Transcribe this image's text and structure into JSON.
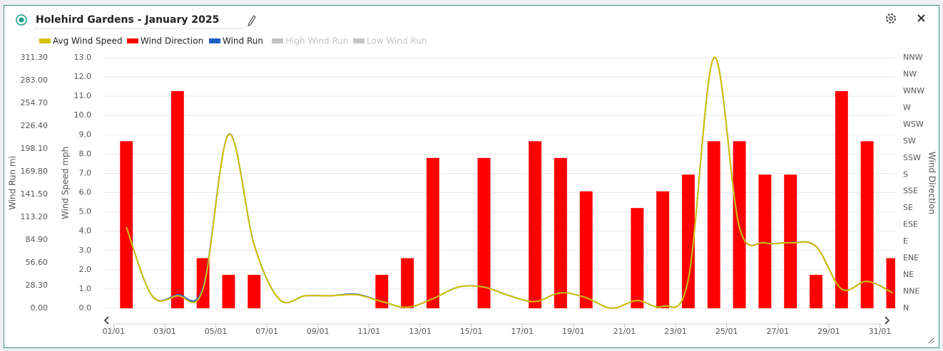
{
  "header": {
    "title": "Holehird Gardens - January 2025"
  },
  "chart_data": {
    "type": "combo",
    "x": [
      1.5,
      2.5,
      3.5,
      4.5,
      5.5,
      6.5,
      7.5,
      8.5,
      9.5,
      10.5,
      11.5,
      12.5,
      13.5,
      14.5,
      15.5,
      16.5,
      17.5,
      18.5,
      19.5,
      20.5,
      21.5,
      22.5,
      23.5,
      24.5,
      25.5,
      26.5,
      27.5,
      28.5,
      29.5,
      30.5,
      31.5
    ],
    "xlim": [
      0.6,
      31.6
    ],
    "xticks": [
      {
        "value": 1,
        "label": "01/01"
      },
      {
        "value": 3,
        "label": "03/01"
      },
      {
        "value": 5,
        "label": "05/01"
      },
      {
        "value": 7,
        "label": "07/01"
      },
      {
        "value": 9,
        "label": "09/01"
      },
      {
        "value": 11,
        "label": "11/01"
      },
      {
        "value": 13,
        "label": "13/01"
      },
      {
        "value": 15,
        "label": "15/01"
      },
      {
        "value": 17,
        "label": "17/01"
      },
      {
        "value": 19,
        "label": "19/01"
      },
      {
        "value": 21,
        "label": "21/01"
      },
      {
        "value": 23,
        "label": "23/01"
      },
      {
        "value": 25,
        "label": "25/01"
      },
      {
        "value": 27,
        "label": "27/01"
      },
      {
        "value": 29,
        "label": "29/01"
      },
      {
        "value": 31,
        "label": "31/01"
      }
    ],
    "series": [
      {
        "name": "Avg Wind Speed",
        "type": "line",
        "color": "#d4c000",
        "axis": "y",
        "values": [
          4.2,
          0.65,
          0.65,
          1.0,
          9.0,
          3.3,
          0.45,
          0.65,
          0.65,
          0.7,
          0.35,
          0.05,
          0.5,
          1.1,
          1.1,
          0.65,
          0.35,
          0.8,
          0.55,
          0.0,
          0.4,
          0.1,
          1.5,
          13.0,
          4.2,
          3.4,
          3.4,
          3.2,
          1.0,
          1.4,
          0.8
        ]
      },
      {
        "name": "Wind Direction",
        "type": "bar",
        "color": "#ff0000",
        "axis": "y3",
        "values": [
          225,
          null,
          292.5,
          67.5,
          45,
          45,
          null,
          null,
          null,
          null,
          45,
          67.5,
          202.5,
          null,
          202.5,
          null,
          225,
          202.5,
          157.5,
          null,
          135,
          157.5,
          180,
          225,
          225,
          180,
          180,
          45,
          292.5,
          225,
          67.5
        ]
      },
      {
        "name": "Wind Run",
        "type": "line",
        "color": "#1f5fbf",
        "axis": "y2",
        "values": [
          100.8,
          15.6,
          16.8,
          26,
          216,
          79.2,
          10.8,
          15.6,
          15.6,
          17.5,
          8.4,
          1.2,
          12,
          26.4,
          26.4,
          15.6,
          8.4,
          19.2,
          13.2,
          0,
          9.6,
          2.4,
          36,
          311.3,
          100.8,
          81.6,
          81.6,
          76.8,
          24,
          33.6,
          19.2
        ]
      },
      {
        "name": "High Wind Run",
        "type": "line",
        "color": "#c4c4c4",
        "axis": "y2",
        "visible": false
      },
      {
        "name": "Low Wind Run",
        "type": "line",
        "color": "#c4c4c4",
        "axis": "y2",
        "visible": false
      }
    ],
    "ylabel": "Wind Speed mph",
    "ylim": [
      0,
      13
    ],
    "yticks": [
      {
        "value": 0,
        "label": "0.0"
      },
      {
        "value": 1,
        "label": "1.0"
      },
      {
        "value": 2,
        "label": "2.0"
      },
      {
        "value": 3,
        "label": "3.0"
      },
      {
        "value": 4,
        "label": "4.0"
      },
      {
        "value": 5,
        "label": "5.0"
      },
      {
        "value": 6,
        "label": "6.0"
      },
      {
        "value": 7,
        "label": "7.0"
      },
      {
        "value": 8,
        "label": "8.0"
      },
      {
        "value": 9,
        "label": "9.0"
      },
      {
        "value": 10,
        "label": "10.0"
      },
      {
        "value": 11,
        "label": "11.0"
      },
      {
        "value": 12,
        "label": "12.0"
      },
      {
        "value": 13,
        "label": "13.0"
      }
    ],
    "y2label": "Wind Run mi",
    "y2lim": [
      0,
      311.3
    ],
    "y2ticks": [
      {
        "value": 0,
        "label": "0.00"
      },
      {
        "value": 28.3,
        "label": "28.30"
      },
      {
        "value": 56.6,
        "label": "56.60"
      },
      {
        "value": 84.9,
        "label": "84.90"
      },
      {
        "value": 113.2,
        "label": "113.20"
      },
      {
        "value": 141.5,
        "label": "141.50"
      },
      {
        "value": 169.8,
        "label": "169.80"
      },
      {
        "value": 198.1,
        "label": "198.10"
      },
      {
        "value": 226.4,
        "label": "226.40"
      },
      {
        "value": 254.7,
        "label": "254.70"
      },
      {
        "value": 283,
        "label": "283.00"
      },
      {
        "value": 311.3,
        "label": "311.30"
      }
    ],
    "y3label": "Wind Direction",
    "y3lim": [
      0,
      337.5
    ],
    "y3ticks": [
      {
        "value": 0,
        "label": "N"
      },
      {
        "value": 22.5,
        "label": "NNE"
      },
      {
        "value": 45,
        "label": "NE"
      },
      {
        "value": 67.5,
        "label": "ENE"
      },
      {
        "value": 90,
        "label": "E"
      },
      {
        "value": 112.5,
        "label": "ESE"
      },
      {
        "value": 135,
        "label": "SE"
      },
      {
        "value": 157.5,
        "label": "SSE"
      },
      {
        "value": 180,
        "label": "S"
      },
      {
        "value": 202.5,
        "label": "SSW"
      },
      {
        "value": 225,
        "label": "SW"
      },
      {
        "value": 247.5,
        "label": "WSW"
      },
      {
        "value": 270,
        "label": "W"
      },
      {
        "value": 292.5,
        "label": "WNW"
      },
      {
        "value": 315,
        "label": "NW"
      },
      {
        "value": 337.5,
        "label": "NNW"
      }
    ],
    "grid": true
  }
}
